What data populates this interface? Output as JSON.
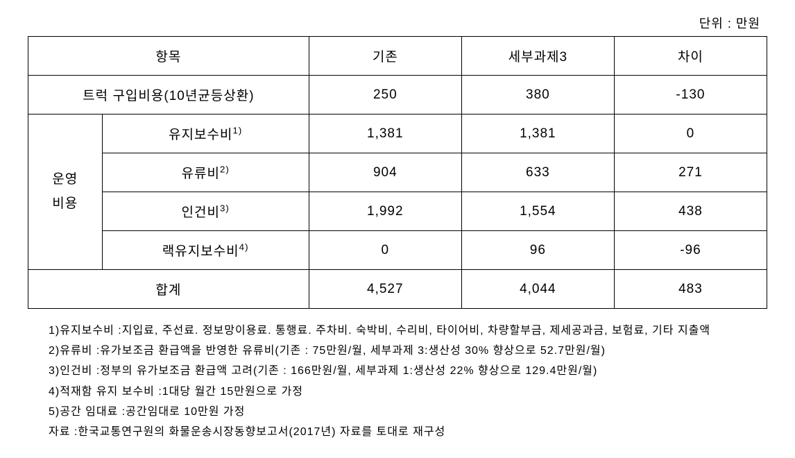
{
  "unit_label": "단위 : 만원",
  "table": {
    "headers": [
      "항목",
      "기존",
      "세부과제3",
      "차이"
    ],
    "purchase_row": {
      "label": "트럭 구입비용(10년균등상환)",
      "existing": "250",
      "detailed": "380",
      "diff": "-130"
    },
    "operating_group_label_line1": "운영",
    "operating_group_label_line2": "비용",
    "operating_rows": [
      {
        "label": "유지보수비",
        "sup": "1)",
        "existing": "1,381",
        "detailed": "1,381",
        "diff": "0"
      },
      {
        "label": "유류비",
        "sup": "2)",
        "existing": "904",
        "detailed": "633",
        "diff": "271"
      },
      {
        "label": "인건비",
        "sup": "3)",
        "existing": "1,992",
        "detailed": "1,554",
        "diff": "438"
      },
      {
        "label": "랙유지보수비",
        "sup": "4)",
        "existing": "0",
        "detailed": "96",
        "diff": "-96"
      }
    ],
    "total_row": {
      "label": "합계",
      "existing": "4,527",
      "detailed": "4,044",
      "diff": "483"
    }
  },
  "footnotes": [
    {
      "num": "1)",
      "label": " 유지보수비 : ",
      "text": "지입료, 주선료. 정보망이용료. 통행료. 주차비. 숙박비, 수리비, 타이어비, 차량할부금, 제세공과금, 보험료, 기타 지출액"
    },
    {
      "num": "2)",
      "label": " 유류비 : ",
      "text": "유가보조금 환급액을 반영한 유류비(기존 : 75만원/월, 세부과제 3:생산성 30% 향상으로 52.7만원/월)"
    },
    {
      "num": "3)",
      "label": " 인건비 : ",
      "text": "정부의 유가보조금 환급액 고려(기존 : 166만원/월, 세부과제 1:생산성 22% 향상으로 129.4만원/월)"
    },
    {
      "num": "4)",
      "label": " 적재함 유지 보수비 :  ",
      "text": "1대당 월간 15만원으로 가정"
    },
    {
      "num": "5)",
      "label": " 공간 임대료 : ",
      "text": "공간임대로 10만원 가정"
    },
    {
      "num": "자료 : ",
      "label": "",
      "text": "한국교통연구원의 화물운송시장동향보고서(2017년) 자료를 토대로 재구성"
    }
  ]
}
